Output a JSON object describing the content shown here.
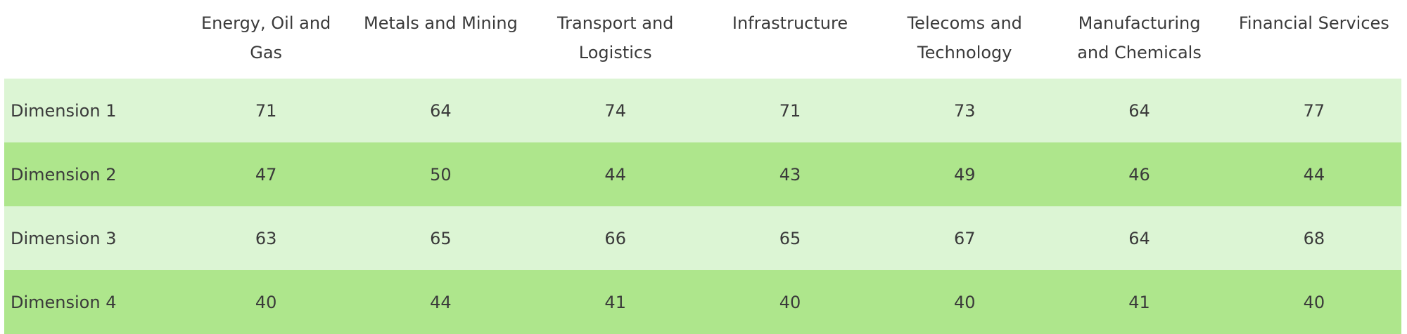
{
  "table": {
    "columns": [
      "Energy, Oil and Gas",
      "Metals and Mining",
      "Transport and Logistics",
      "Infrastructure",
      "Telecoms and Technology",
      "Manufacturing and Chemicals",
      "Financial Services"
    ],
    "rows": [
      {
        "label": "Dimension 1",
        "values": [
          71,
          64,
          74,
          71,
          73,
          64,
          77
        ]
      },
      {
        "label": "Dimension 2",
        "values": [
          47,
          50,
          44,
          43,
          49,
          46,
          44
        ]
      },
      {
        "label": "Dimension 3",
        "values": [
          63,
          65,
          66,
          65,
          67,
          64,
          68
        ]
      },
      {
        "label": "Dimension 4",
        "values": [
          40,
          44,
          41,
          40,
          40,
          41,
          40
        ]
      }
    ]
  }
}
